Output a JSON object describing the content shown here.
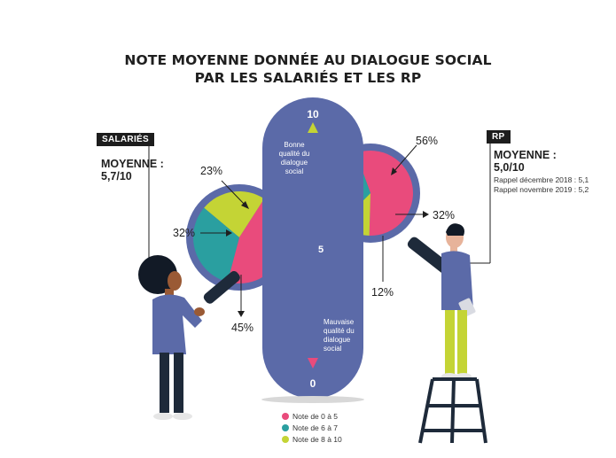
{
  "title_lines": [
    "NOTE MOYENNE DONNÉE AU DIALOGUE SOCIAL",
    "PAR LES SALARIÉS ET LES RP"
  ],
  "colors": {
    "pink": "#e94b7c",
    "teal": "#2a9fa0",
    "lime": "#c4d435",
    "gauge": "#5b6aa8",
    "dark_navy": "#1e2a3a"
  },
  "salaries": {
    "tag": "SALARIÉS",
    "mean_label": "MOYENNE :",
    "mean_value": "5,7/10"
  },
  "rp": {
    "tag": "RP",
    "mean_label": "MOYENNE :",
    "mean_value": "5,0/10",
    "recalls": [
      "Rappel décembre 2018 : 5,1",
      "Rappel novembre 2019 : 5,2"
    ]
  },
  "gauge": {
    "top": "10",
    "middle": "5",
    "bottom": "0",
    "top_text": [
      "Bonne",
      "qualité du",
      "dialogue",
      "social"
    ],
    "bottom_text": [
      "Mauvaise",
      "qualité du",
      "dialogue",
      "social"
    ]
  },
  "chart_data": [
    {
      "type": "pie",
      "name": "Salariés",
      "categories": [
        "Note de 0 à 5",
        "Note de 6 à 7",
        "Note de 8 à 10"
      ],
      "values": [
        45,
        32,
        23
      ],
      "labels": [
        "45%",
        "32%",
        "23%"
      ],
      "colors": [
        "#e94b7c",
        "#2a9fa0",
        "#c4d435"
      ]
    },
    {
      "type": "pie",
      "name": "RP",
      "categories": [
        "Note de 0 à 5",
        "Note de 6 à 7",
        "Note de 8 à 10"
      ],
      "values": [
        56,
        32,
        12
      ],
      "labels": [
        "56%",
        "32%",
        "12%"
      ],
      "colors": [
        "#e94b7c",
        "#2a9fa0",
        "#c4d435"
      ]
    }
  ],
  "legend": [
    {
      "label": "Note de 0 à 5",
      "color": "#e94b7c"
    },
    {
      "label": "Note de 6 à 7",
      "color": "#2a9fa0"
    },
    {
      "label": "Note de 8 à 10",
      "color": "#c4d435"
    }
  ]
}
